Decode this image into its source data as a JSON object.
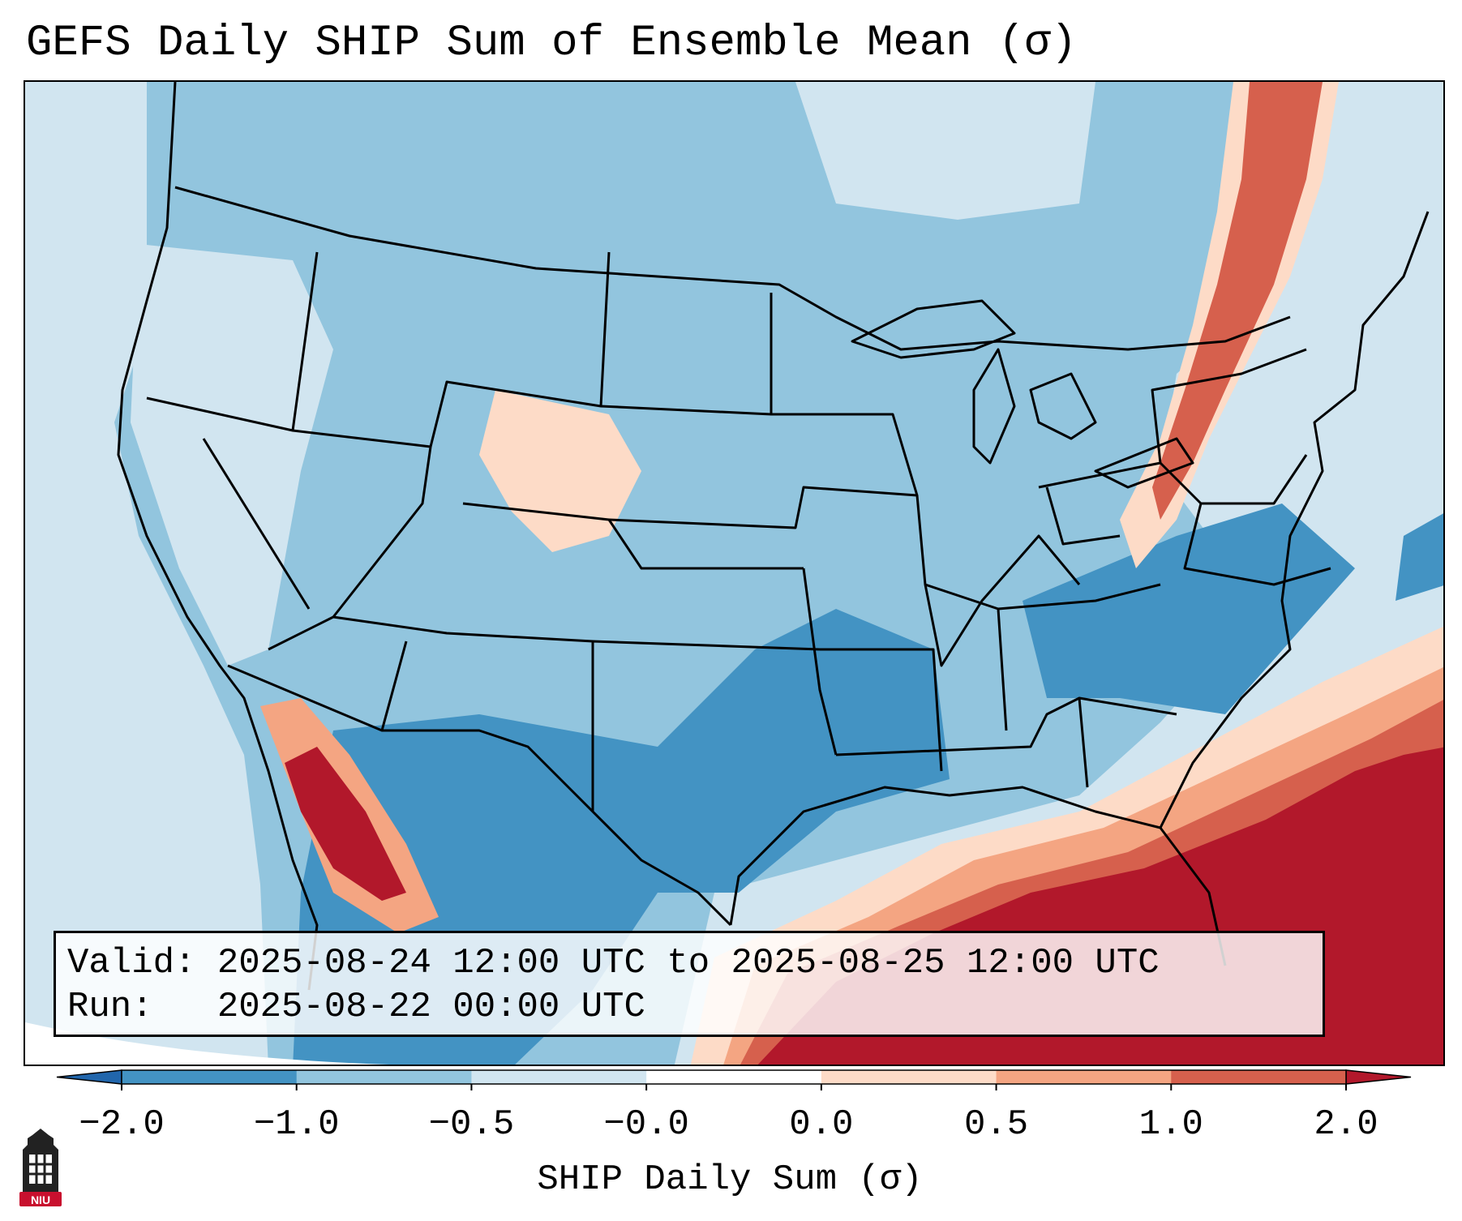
{
  "title": "GEFS Daily SHIP Sum of Ensemble Mean (σ)",
  "info": {
    "valid_label": "Valid:",
    "valid_value": "2025-08-24 12:00 UTC to 2025-08-25 12:00 UTC",
    "run_label": "Run:",
    "run_value": "2025-08-22 00:00 UTC"
  },
  "colorbar": {
    "title": "SHIP Daily Sum (σ)",
    "ticks": [
      "−2.0",
      "−1.0",
      "−0.5",
      "−0.0",
      "0.0",
      "0.5",
      "1.0",
      "2.0"
    ],
    "colors": [
      "#2166ac",
      "#4393c3",
      "#92c5de",
      "#d1e5f0",
      "#ffffff",
      "#fddbc7",
      "#f4a582",
      "#d6604d",
      "#b2182b"
    ],
    "under_color": "#2166ac",
    "over_color": "#b2182b"
  },
  "logo": {
    "text": "NIU",
    "color": "#c8102e"
  }
}
